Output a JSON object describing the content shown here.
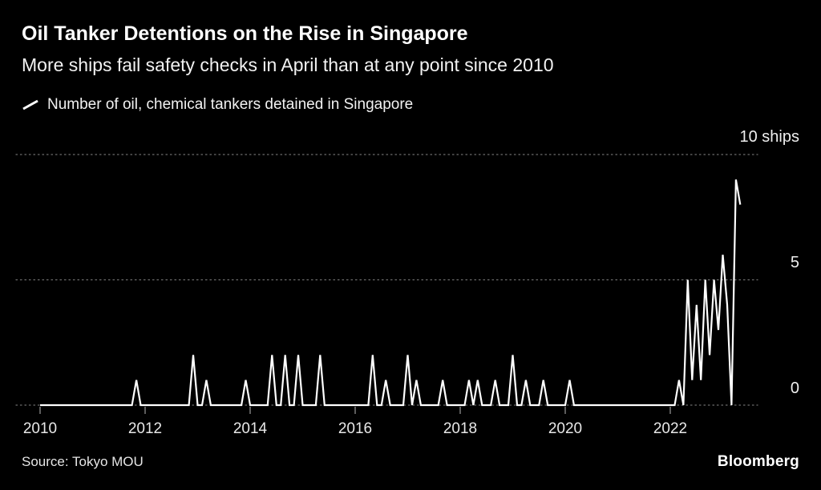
{
  "header": {
    "title": "Oil Tanker Detentions on the Rise in Singapore",
    "subtitle": "More ships fail safety checks in April than at any point since 2010"
  },
  "legend": {
    "label": "Number of oil, chemical tankers detained in Singapore"
  },
  "footer": {
    "source": "Source: Tokyo MOU",
    "brand": "Bloomberg"
  },
  "chart_data": {
    "type": "line",
    "title": "Oil Tanker Detentions on the Rise in Singapore",
    "subtitle": "More ships fail safety checks in April than at any point since 2010",
    "series_name": "Number of oil, chemical tankers detained in Singapore",
    "unit": "ships",
    "x_start": "2010-01",
    "x_end": "2023-05",
    "x_ticks": [
      2010,
      2012,
      2014,
      2016,
      2018,
      2020,
      2022
    ],
    "y_ticks": [
      0,
      5,
      10
    ],
    "y_tick_labels": [
      "0",
      "5",
      "10 ships"
    ],
    "ylim": [
      0,
      10
    ],
    "grid": "dotted-horizontal",
    "line_color": "#ffffff",
    "background_color": "#000000",
    "monthly_nonzero": {
      "2011-11": 1,
      "2012-12": 2,
      "2013-03": 1,
      "2013-12": 1,
      "2014-06": 2,
      "2014-09": 2,
      "2014-12": 2,
      "2015-05": 2,
      "2016-05": 2,
      "2016-08": 1,
      "2017-01": 2,
      "2017-03": 1,
      "2017-09": 1,
      "2018-03": 1,
      "2018-05": 1,
      "2018-09": 1,
      "2019-01": 2,
      "2019-04": 1,
      "2019-08": 1,
      "2020-02": 1,
      "2022-03": 1,
      "2022-05": 5,
      "2022-06": 1,
      "2022-07": 4,
      "2022-08": 1,
      "2022-09": 5,
      "2022-10": 2,
      "2022-11": 5,
      "2022-12": 3,
      "2023-01": 6,
      "2023-02": 4,
      "2023-04": 9,
      "2023-05": 8
    }
  }
}
